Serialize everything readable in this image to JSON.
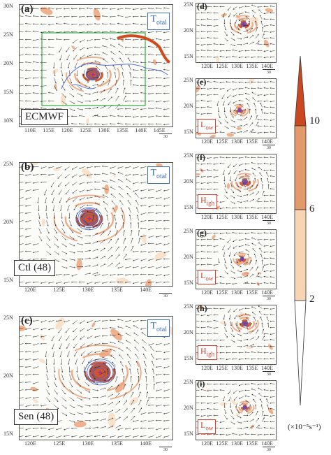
{
  "panels_left": [
    {
      "id": "a",
      "label": "(a)",
      "tag_main": "T",
      "tag_sub": "otal",
      "name": "ECMWF",
      "lat": [
        "30N",
        "25N",
        "20N",
        "15N",
        "10N"
      ],
      "lon": [
        "110E",
        "115E",
        "120E",
        "125E",
        "130E",
        "135E",
        "140E",
        "145E"
      ],
      "scale": "30"
    },
    {
      "id": "b",
      "label": "(b)",
      "tag_main": "T",
      "tag_sub": "otal",
      "name": "Ctl (48)",
      "lat": [
        "25N",
        "20N",
        "15N"
      ],
      "lon": [
        "120E",
        "125E",
        "130E",
        "135E",
        "140E"
      ],
      "scale": "30"
    },
    {
      "id": "c",
      "label": "(c)",
      "tag_main": "T",
      "tag_sub": "otal",
      "name": "Sen (48)",
      "lat": [
        "25N",
        "20N",
        "15N"
      ],
      "lon": [
        "120E",
        "125E",
        "130E",
        "135E",
        "140E"
      ],
      "scale": "30"
    }
  ],
  "panels_right": [
    {
      "id": "d",
      "label": "(d)",
      "tag_main": "",
      "tag_sub": "",
      "lat": [
        "25N",
        "20N",
        "15N"
      ],
      "lon": [
        "120E",
        "125E",
        "130E",
        "135E",
        "140E"
      ],
      "scale": "30"
    },
    {
      "id": "e",
      "label": "(e)",
      "tag_main": "L",
      "tag_sub": "ow",
      "lat": [
        "25N",
        "20N",
        "15N"
      ],
      "lon": [
        "120E",
        "125E",
        "130E",
        "135E",
        "140E"
      ],
      "scale": "30"
    },
    {
      "id": "f",
      "label": "(f)",
      "tag_main": "H",
      "tag_sub": "igh",
      "lat": [
        "25N",
        "20N",
        "15N"
      ],
      "lon": [
        "120E",
        "125E",
        "130E",
        "135E",
        "140E"
      ],
      "scale": "30"
    },
    {
      "id": "g",
      "label": "(g)",
      "tag_main": "L",
      "tag_sub": "ow",
      "lat": [
        "25N",
        "20N",
        "15N"
      ],
      "lon": [
        "120E",
        "125E",
        "130E",
        "135E",
        "140E"
      ],
      "scale": "30"
    },
    {
      "id": "h",
      "label": "(h)",
      "tag_main": "H",
      "tag_sub": "igh",
      "lat": [
        "25N",
        "20N",
        "15N"
      ],
      "lon": [
        "120E",
        "125E",
        "130E",
        "135E",
        "140E"
      ],
      "scale": "30"
    },
    {
      "id": "i",
      "label": "(i)",
      "tag_main": "L",
      "tag_sub": "ow",
      "lat": [
        "25N",
        "20N",
        "15N"
      ],
      "lon": [
        "120E",
        "125E",
        "130E",
        "135E",
        "140E"
      ],
      "scale": "30"
    }
  ],
  "colorbar": {
    "labels": [
      "10",
      "6",
      "2"
    ],
    "unit": "(×10⁻⁵s⁻¹)",
    "colors": [
      "#c9481f",
      "#e39a6a",
      "#f6d4b4",
      "#ffffff"
    ]
  },
  "colors": {
    "vort": "#cf4a1e",
    "vort_light": "#eca27a",
    "vort_pale": "#f8dcc2",
    "contour": "#3d5fd6",
    "box": "#33a844",
    "arrow": "#222222"
  }
}
